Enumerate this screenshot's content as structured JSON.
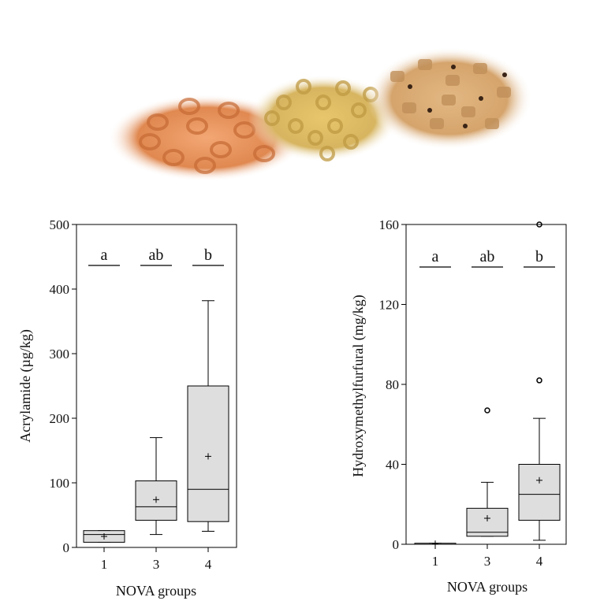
{
  "figure": {
    "photo_description_icon": "cereal-piles-photo",
    "box_fill": "#dedede",
    "stroke": "#000000"
  },
  "chart_data": [
    {
      "type": "box",
      "xlabel": "NOVA groups",
      "ylabel": "Acrylamide (µg/kg)",
      "ylim": [
        0,
        500
      ],
      "yticks": [
        0,
        100,
        200,
        300,
        400,
        500
      ],
      "categories": [
        "1",
        "3",
        "4"
      ],
      "significance_letters": [
        "a",
        "ab",
        "b"
      ],
      "boxes": [
        {
          "group": "1",
          "whisker_low": 8,
          "q1": 8,
          "median": 20,
          "q3": 26,
          "whisker_high": 26,
          "mean": 17,
          "outliers": []
        },
        {
          "group": "3",
          "whisker_low": 20,
          "q1": 42,
          "median": 63,
          "q3": 103,
          "whisker_high": 170,
          "mean": 74,
          "outliers": []
        },
        {
          "group": "4",
          "whisker_low": 25,
          "q1": 40,
          "median": 90,
          "q3": 250,
          "whisker_high": 382,
          "mean": 141,
          "outliers": []
        }
      ]
    },
    {
      "type": "box",
      "xlabel": "NOVA groups",
      "ylabel": "Hydroxymethylfurfural (mg/kg)",
      "ylim": [
        0,
        160
      ],
      "yticks": [
        0,
        40,
        80,
        120,
        160
      ],
      "categories": [
        "1",
        "3",
        "4"
      ],
      "significance_letters": [
        "a",
        "ab",
        "b"
      ],
      "boxes": [
        {
          "group": "1",
          "whisker_low": 0,
          "q1": 0,
          "median": 0,
          "q3": 0.5,
          "whisker_high": 0.5,
          "mean": 0.3,
          "outliers": []
        },
        {
          "group": "3",
          "whisker_low": 4,
          "q1": 4,
          "median": 6,
          "q3": 18,
          "whisker_high": 31,
          "mean": 13,
          "outliers": [
            67
          ]
        },
        {
          "group": "4",
          "whisker_low": 2,
          "q1": 12,
          "median": 25,
          "q3": 40,
          "whisker_high": 63,
          "mean": 32,
          "outliers": [
            82,
            160
          ]
        }
      ]
    }
  ]
}
